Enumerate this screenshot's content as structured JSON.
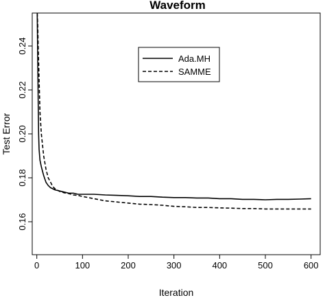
{
  "chart_data": {
    "type": "line",
    "title": "Waveform",
    "xlabel": "Iteration",
    "ylabel": "Test Error",
    "xlim": [
      -10,
      620
    ],
    "ylim": [
      0.145,
      0.255
    ],
    "xticks": [
      0,
      100,
      200,
      300,
      400,
      500,
      600
    ],
    "yticks": [
      0.16,
      0.18,
      0.2,
      0.22,
      0.24
    ],
    "ytick_labels": [
      "0.16",
      "0.18",
      "0.20",
      "0.22",
      "0.24"
    ],
    "grid": false,
    "legend": {
      "position": "top-right-inset"
    },
    "series": [
      {
        "name": "Ada.MH",
        "style": "solid",
        "color": "#000000",
        "x": [
          1,
          2,
          3,
          4,
          5,
          7,
          10,
          15,
          20,
          25,
          30,
          35,
          40,
          50,
          60,
          70,
          80,
          90,
          100,
          125,
          150,
          175,
          200,
          225,
          250,
          275,
          300,
          325,
          350,
          375,
          400,
          425,
          450,
          475,
          500,
          525,
          550,
          575,
          600
        ],
        "y": [
          0.255,
          0.235,
          0.215,
          0.2,
          0.193,
          0.188,
          0.185,
          0.181,
          0.178,
          0.1765,
          0.1755,
          0.175,
          0.1745,
          0.174,
          0.1735,
          0.173,
          0.173,
          0.1725,
          0.1725,
          0.1725,
          0.1722,
          0.172,
          0.1718,
          0.1715,
          0.1715,
          0.1712,
          0.171,
          0.171,
          0.1708,
          0.1708,
          0.1705,
          0.1705,
          0.1702,
          0.1702,
          0.17,
          0.1702,
          0.1702,
          0.1703,
          0.1705
        ]
      },
      {
        "name": "SAMME",
        "style": "dashed",
        "color": "#000000",
        "x": [
          1,
          2,
          3,
          5,
          7,
          10,
          15,
          20,
          25,
          30,
          35,
          40,
          50,
          60,
          70,
          80,
          90,
          100,
          125,
          150,
          175,
          200,
          225,
          250,
          275,
          300,
          325,
          350,
          375,
          400,
          425,
          450,
          475,
          500,
          525,
          550,
          575,
          600
        ],
        "y": [
          0.255,
          0.25,
          0.24,
          0.225,
          0.21,
          0.2,
          0.19,
          0.184,
          0.18,
          0.178,
          0.176,
          0.175,
          0.1738,
          0.1732,
          0.1728,
          0.1722,
          0.172,
          0.1715,
          0.1705,
          0.1695,
          0.169,
          0.1685,
          0.168,
          0.1678,
          0.1675,
          0.167,
          0.1668,
          0.1665,
          0.1665,
          0.1663,
          0.1662,
          0.166,
          0.166,
          0.1658,
          0.1658,
          0.1658,
          0.1658,
          0.1658
        ]
      }
    ]
  }
}
